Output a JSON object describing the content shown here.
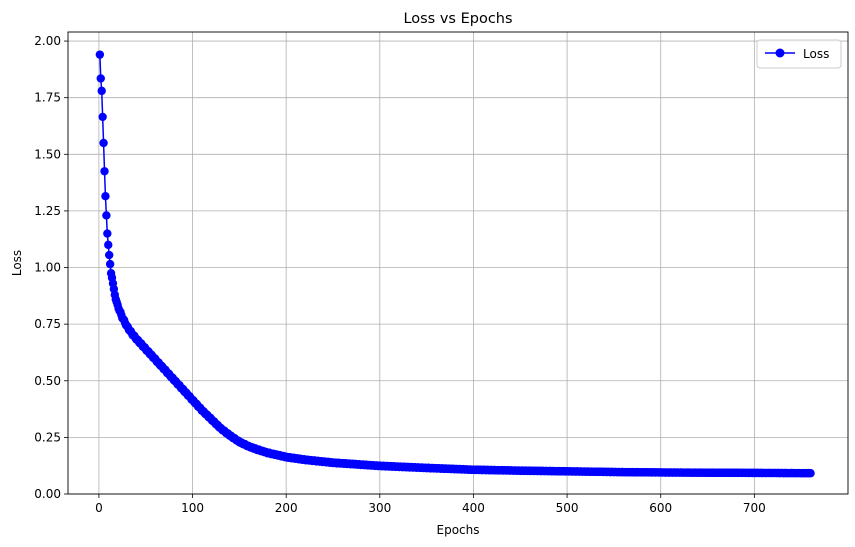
{
  "chart_data": {
    "type": "line",
    "title": "Loss vs Epochs",
    "xlabel": "Epochs",
    "ylabel": "Loss",
    "xlim": [
      -33,
      800
    ],
    "ylim": [
      0,
      2.04
    ],
    "xticks": [
      0,
      100,
      200,
      300,
      400,
      500,
      600,
      700
    ],
    "yticks": [
      0.0,
      0.25,
      0.5,
      0.75,
      1.0,
      1.25,
      1.5,
      1.75,
      2.0
    ],
    "ytick_labels": [
      "0.00",
      "0.25",
      "0.50",
      "0.75",
      "1.00",
      "1.25",
      "1.50",
      "1.75",
      "2.00"
    ],
    "grid": true,
    "legend_position": "top-right",
    "series": [
      {
        "name": "Loss",
        "color": "#0000ff",
        "marker": "circle",
        "x_range": [
          1,
          760
        ],
        "y_checkpoints": [
          [
            1,
            1.94
          ],
          [
            2,
            1.835
          ],
          [
            3,
            1.78
          ],
          [
            4,
            1.665
          ],
          [
            5,
            1.55
          ],
          [
            6,
            1.425
          ],
          [
            7,
            1.315
          ],
          [
            8,
            1.23
          ],
          [
            9,
            1.15
          ],
          [
            10,
            1.1
          ],
          [
            11,
            1.055
          ],
          [
            12,
            1.015
          ],
          [
            13,
            0.975
          ],
          [
            14,
            0.955
          ],
          [
            15,
            0.93
          ],
          [
            16,
            0.905
          ],
          [
            17,
            0.88
          ],
          [
            18,
            0.86
          ],
          [
            20,
            0.835
          ],
          [
            22,
            0.81
          ],
          [
            25,
            0.78
          ],
          [
            30,
            0.74
          ],
          [
            35,
            0.71
          ],
          [
            40,
            0.685
          ],
          [
            50,
            0.64
          ],
          [
            60,
            0.595
          ],
          [
            70,
            0.55
          ],
          [
            80,
            0.505
          ],
          [
            90,
            0.46
          ],
          [
            100,
            0.415
          ],
          [
            110,
            0.37
          ],
          [
            120,
            0.33
          ],
          [
            130,
            0.29
          ],
          [
            140,
            0.258
          ],
          [
            150,
            0.23
          ],
          [
            160,
            0.21
          ],
          [
            170,
            0.195
          ],
          [
            180,
            0.182
          ],
          [
            200,
            0.163
          ],
          [
            220,
            0.151
          ],
          [
            250,
            0.138
          ],
          [
            300,
            0.124
          ],
          [
            350,
            0.115
          ],
          [
            400,
            0.107
          ],
          [
            450,
            0.103
          ],
          [
            500,
            0.1
          ],
          [
            550,
            0.097
          ],
          [
            600,
            0.095
          ],
          [
            650,
            0.094
          ],
          [
            700,
            0.093
          ],
          [
            760,
            0.092
          ]
        ]
      }
    ]
  }
}
